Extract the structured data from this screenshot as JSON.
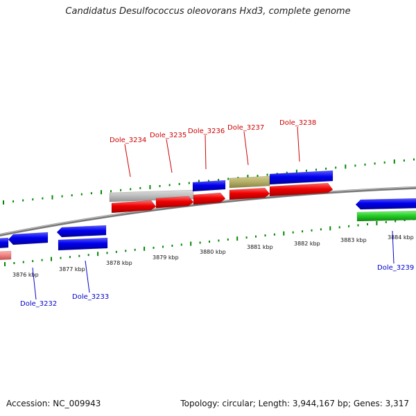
{
  "title": "Candidatus Desulfococcus oleovorans Hxd3, complete genome",
  "footer": {
    "accession": "Accession: NC_009943",
    "summary": "Topology: circular; Length: 3,944,167 bp; Genes: 3,317"
  },
  "colors": {
    "forward_label": "#cc0000",
    "reverse_label": "#0000cc",
    "tick_green": "#008800",
    "red_gene": "#ee0000",
    "blue_gene": "#0000ee",
    "gray_gene": "#b8b8b8",
    "olive_gene": "#b5ae66",
    "green_gene": "#22cc22",
    "pink_gene": "#f08080",
    "backbone": "#888888"
  },
  "scale_labels": [
    "3876 kbp",
    "3877 kbp",
    "3878 kbp",
    "3879 kbp",
    "3880 kbp",
    "3881 kbp",
    "3882 kbp",
    "3883 kbp",
    "3884 kbp"
  ],
  "forward_gene_labels": [
    "Dole_3234",
    "Dole_3235",
    "Dole_3236",
    "Dole_3237",
    "Dole_3238"
  ],
  "reverse_gene_labels": [
    "Dole_3232",
    "Dole_3233",
    "Dole_3239"
  ]
}
